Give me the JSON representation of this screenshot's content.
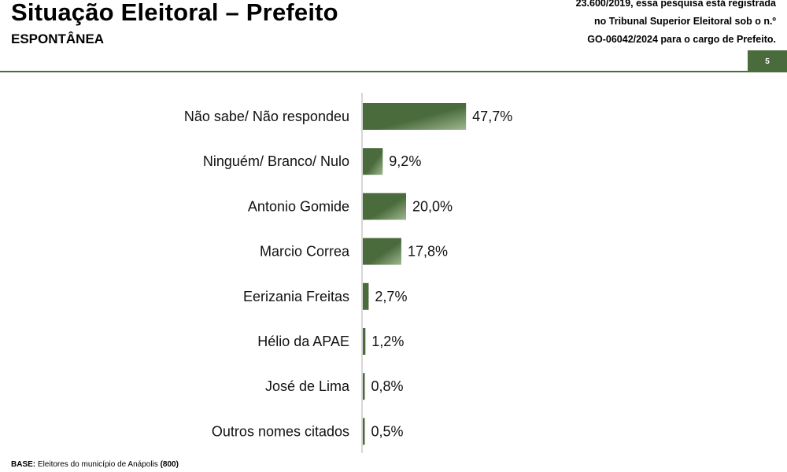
{
  "header": {
    "title": "Situação Eleitoral – Prefeito",
    "subtitle": "ESPONTÂNEA",
    "notice_lines": [
      "23.600/2019, essa pesquisa está registrada",
      "no Tribunal Superior Eleitoral sob o n.º",
      "GO-06042/2024 para o cargo de Prefeito."
    ],
    "page_number": "5"
  },
  "footer": {
    "base_label": "BASE:",
    "base_text": " Eleitores do município de Anápolis ",
    "base_count": "(800)"
  },
  "colors": {
    "bar": "#4a6b3c",
    "bar_highlight": "#9fb88f",
    "accent": "#4a6b3c"
  },
  "chart_data": {
    "type": "bar",
    "orientation": "horizontal",
    "categories": [
      "Não sabe/ Não respondeu",
      "Ninguém/ Branco/ Nulo",
      "Antonio Gomide",
      "Marcio Correa",
      "Eerizania Freitas",
      "Hélio da APAE",
      "José de Lima",
      "Outros nomes citados"
    ],
    "values": [
      47.7,
      9.2,
      20.0,
      17.8,
      2.7,
      1.2,
      0.8,
      0.5
    ],
    "value_labels": [
      "47,7%",
      "9,2%",
      "20,0%",
      "17,8%",
      "2,7%",
      "1,2%",
      "0,8%",
      "0,5%"
    ],
    "unit": "%",
    "xlim": [
      0,
      50
    ],
    "grid": false,
    "legend": "none"
  }
}
